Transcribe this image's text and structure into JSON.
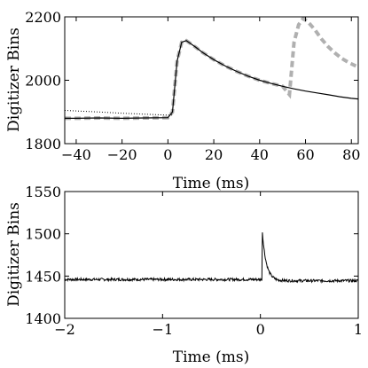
{
  "chart_data": [
    {
      "type": "line",
      "xlabel": "Time (ms)",
      "ylabel": "Digitizer Bins",
      "xlim": [
        -45,
        83
      ],
      "ylim": [
        1800,
        2200
      ],
      "xticks": [
        -40,
        -20,
        0,
        20,
        40,
        60,
        80
      ],
      "yticks": [
        1800,
        2000,
        2200
      ],
      "grid": false,
      "legend": "none",
      "series": [
        {
          "style": "solid",
          "color": "#000000",
          "x": [
            -45,
            -40,
            -30,
            -20,
            -10,
            0,
            2,
            4,
            6,
            8,
            10,
            12,
            15,
            20,
            25,
            30,
            35,
            40,
            45,
            50,
            55,
            60,
            65,
            70,
            75,
            80,
            83
          ],
          "y": [
            1880,
            1880,
            1881,
            1880,
            1881,
            1882,
            1900,
            2060,
            2120,
            2125,
            2115,
            2105,
            2088,
            2065,
            2045,
            2028,
            2013,
            2000,
            1990,
            1981,
            1973,
            1966,
            1960,
            1954,
            1948,
            1943,
            1941
          ]
        },
        {
          "style": "dotted",
          "color": "#000000",
          "x": [
            -45,
            -30,
            -20,
            -10,
            0,
            2
          ],
          "y": [
            1905,
            1900,
            1896,
            1893,
            1890,
            1890
          ]
        },
        {
          "style": "dashed",
          "color": "#b0b0b0",
          "x": [
            -45,
            -40,
            -30,
            -20,
            -10,
            0,
            2,
            4,
            6,
            8,
            10,
            12,
            15,
            20,
            25,
            30,
            35,
            40,
            45,
            50,
            53,
            55,
            57,
            59,
            61,
            64,
            67,
            70,
            73,
            76,
            79,
            82
          ],
          "y": [
            1880,
            1880,
            1881,
            1880,
            1881,
            1882,
            1900,
            2060,
            2120,
            2125,
            2115,
            2105,
            2088,
            2065,
            2045,
            2028,
            2013,
            2000,
            1990,
            1981,
            1955,
            2120,
            2175,
            2195,
            2185,
            2160,
            2130,
            2105,
            2085,
            2068,
            2055,
            2045
          ]
        }
      ]
    },
    {
      "type": "line",
      "xlabel": "Time (ms)",
      "ylabel": "Digitizer Bins",
      "xlim": [
        -2,
        1
      ],
      "ylim": [
        1400,
        1550
      ],
      "xticks": [
        -2,
        -1,
        0,
        1
      ],
      "yticks": [
        1400,
        1450,
        1500,
        1550
      ],
      "grid": false,
      "legend": "none",
      "series": [
        {
          "style": "solid",
          "color": "#000000",
          "baseline": 1445.5,
          "pulse": {
            "t0": 0.02,
            "peak": 1502,
            "baseline": 1446,
            "decay_ms": 0.04
          }
        }
      ]
    }
  ]
}
